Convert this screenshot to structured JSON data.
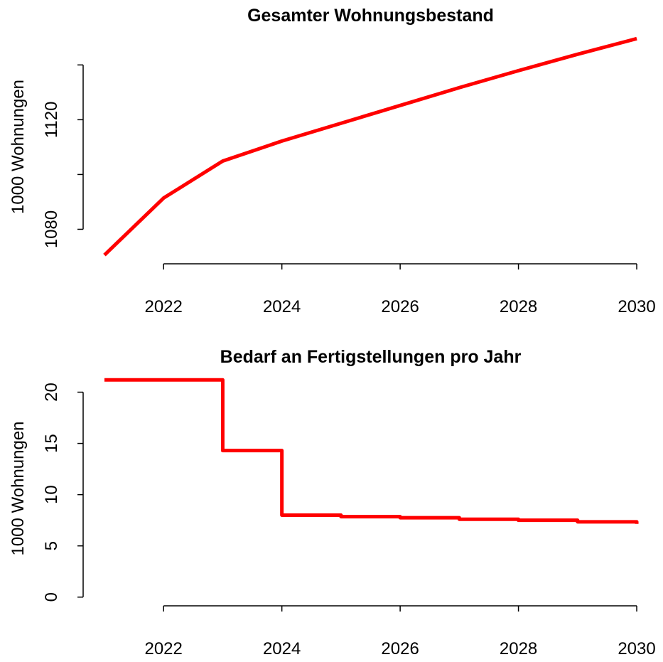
{
  "chart_data": [
    {
      "type": "line",
      "title": "Gesamter Wohnungsbestand",
      "ylabel": "1000 Wohnungen",
      "x": [
        2021,
        2022,
        2023,
        2024,
        2025,
        2026,
        2027,
        2028,
        2029,
        2030
      ],
      "series": [
        {
          "color": "#ff0000",
          "values": [
            1070.6,
            1091.4,
            1104.9,
            1112.2,
            1118.7,
            1125.2,
            1131.7,
            1137.9,
            1143.9,
            1149.6
          ]
        }
      ],
      "xlim": [
        2020.64,
        2030.36
      ],
      "xticks": [
        2022,
        2024,
        2026,
        2028,
        2030
      ],
      "ylim": [
        1067.4,
        1152.8
      ],
      "yticks": [
        1080,
        {
          "value": 1100,
          "label": null
        },
        1120,
        {
          "value": 1140,
          "label": null
        }
      ]
    },
    {
      "type": "step",
      "title": "Bedarf an Fertigstellungen pro Jahr",
      "ylabel": "1000 Wohnungen",
      "x": [
        2021,
        2022,
        2023,
        2024,
        2025,
        2026,
        2027,
        2028,
        2029,
        2030
      ],
      "series": [
        {
          "color": "#ff0000",
          "values": [
            21.2,
            21.2,
            14.3,
            8.0,
            7.85,
            7.75,
            7.6,
            7.5,
            7.35,
            7.15
          ]
        }
      ],
      "xlim": [
        2020.64,
        2030.36
      ],
      "xticks": [
        2022,
        2024,
        2026,
        2028,
        2030
      ],
      "ylim": [
        -0.85,
        22.05
      ],
      "yticks": [
        0,
        5,
        10,
        15,
        20
      ]
    }
  ]
}
